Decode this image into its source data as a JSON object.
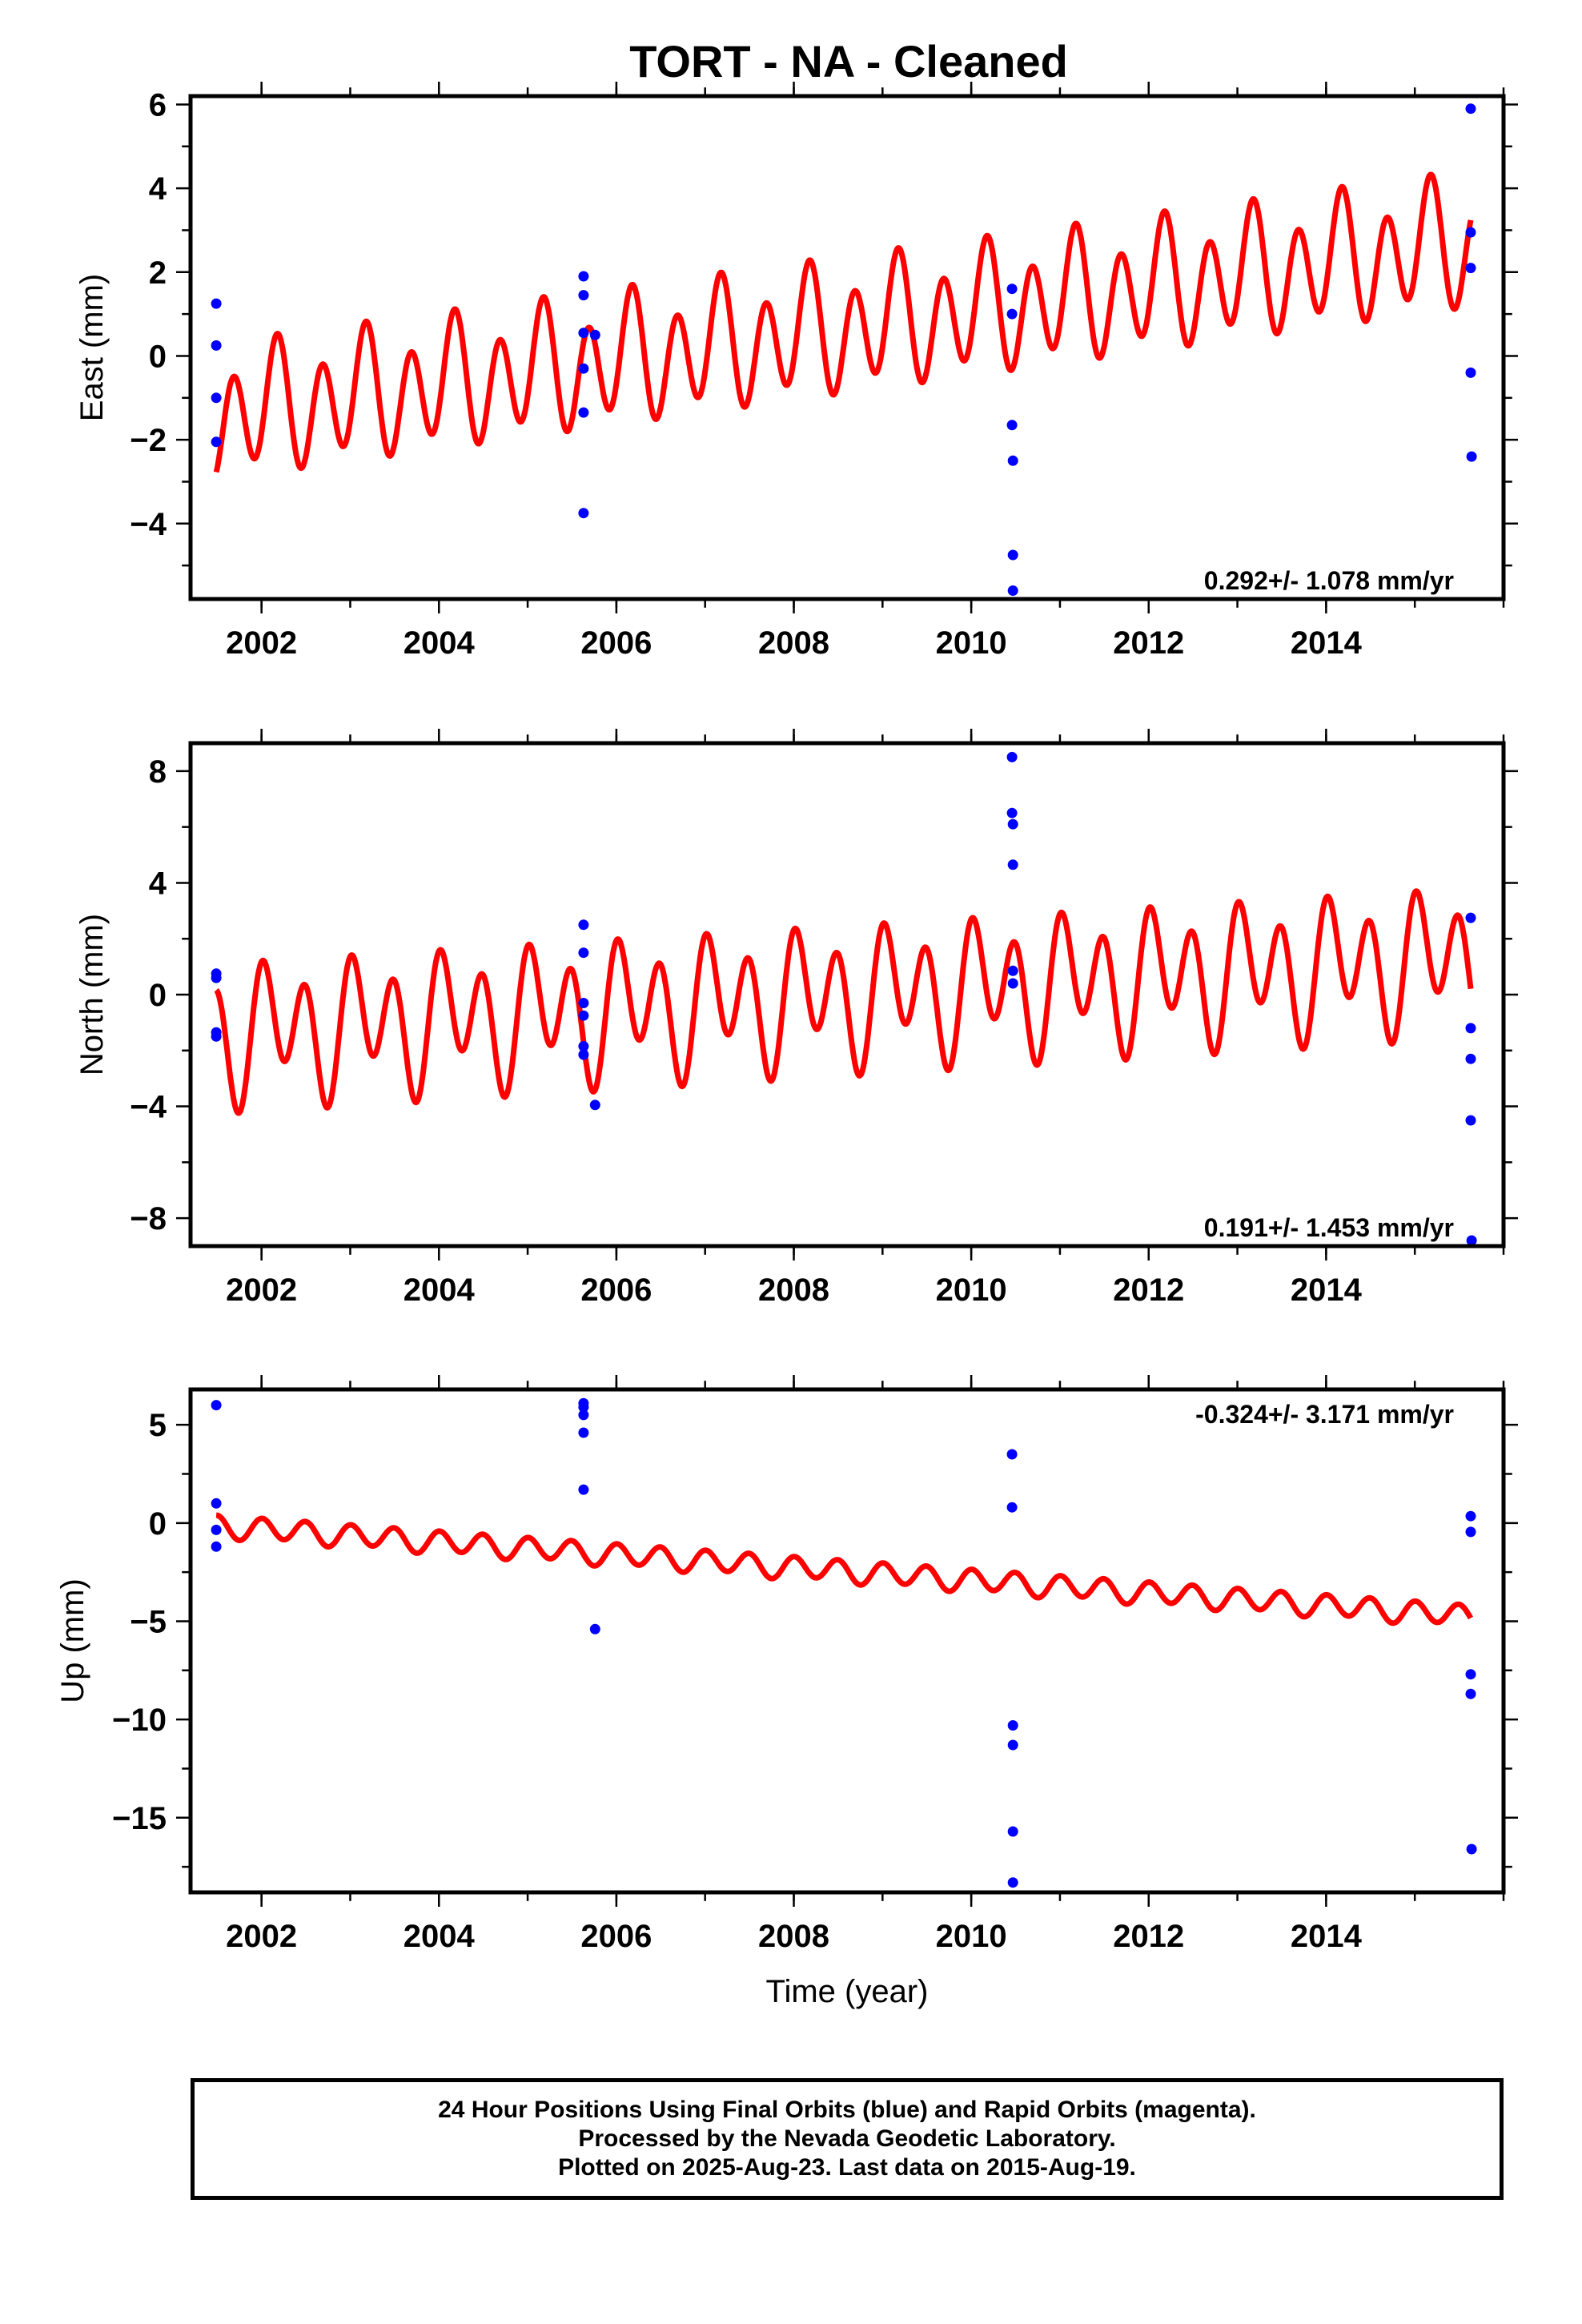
{
  "title": "TORT  - NA - Cleaned",
  "footer": {
    "line1": "24 Hour Positions Using Final Orbits (blue) and Rapid Orbits (magenta).",
    "line2": "Processed by the Nevada Geodetic Laboratory.",
    "line3": "Plotted on 2025-Aug-23. Last data on 2015-Aug-19."
  },
  "colors": {
    "model": "#ff0000",
    "final_orbits": "#0000ff",
    "frame": "#000000"
  },
  "chart_data": [
    {
      "type": "scatter",
      "panel": "east",
      "ylabel": "East (mm)",
      "xlabel": "",
      "xlim": [
        2001.2,
        2016.0
      ],
      "ylim": [
        -5.8,
        6.2
      ],
      "xticks": [
        2002,
        2004,
        2006,
        2008,
        2010,
        2012,
        2014
      ],
      "yticks": [
        -4,
        -2,
        0,
        2,
        4,
        6
      ],
      "rate_label": "0.292+/- 1.078 mm/yr",
      "rate_label_position": "bottom-right",
      "points": {
        "x": [
          2001.49,
          2001.49,
          2001.49,
          2001.49,
          2005.63,
          2005.63,
          2005.63,
          2005.63,
          2005.63,
          2005.63,
          2005.76,
          2010.46,
          2010.46,
          2010.46,
          2010.47,
          2010.47,
          2010.47,
          2015.63,
          2015.63,
          2015.63,
          2015.63,
          2015.64
        ],
        "y": [
          1.25,
          0.25,
          -1.0,
          -2.05,
          1.9,
          1.45,
          0.55,
          -0.3,
          -1.35,
          -3.75,
          0.5,
          1.6,
          1.0,
          -1.65,
          -2.5,
          -4.75,
          -5.6,
          5.9,
          2.95,
          2.1,
          -0.4,
          -2.4
        ]
      },
      "model": {
        "t0": 2001.49,
        "t1": 2015.63,
        "offset": -1.43,
        "rate": 0.292,
        "annual_amp": 0.48,
        "annual_phase": 0.82,
        "semiannual_amp": 1.32,
        "semiannual_phase": -0.75
      }
    },
    {
      "type": "scatter",
      "panel": "north",
      "ylabel": "North (mm)",
      "xlabel": "",
      "xlim": [
        2001.2,
        2016.0
      ],
      "ylim": [
        -9.0,
        9.0
      ],
      "xticks": [
        2002,
        2004,
        2006,
        2008,
        2010,
        2012,
        2014
      ],
      "yticks": [
        -8,
        -4,
        0,
        4,
        8
      ],
      "rate_label": "0.191+/- 1.453 mm/yr",
      "rate_label_position": "bottom-right",
      "points": {
        "x": [
          2001.49,
          2001.49,
          2001.49,
          2001.49,
          2005.63,
          2005.63,
          2005.63,
          2005.63,
          2005.63,
          2005.63,
          2005.76,
          2010.46,
          2010.46,
          2010.47,
          2010.47,
          2010.47,
          2010.47,
          2015.63,
          2015.63,
          2015.63,
          2015.63,
          2015.64
        ],
        "y": [
          0.75,
          0.6,
          -1.35,
          -1.5,
          2.5,
          1.5,
          -0.3,
          -0.75,
          -1.85,
          -2.15,
          -3.95,
          8.5,
          6.5,
          6.1,
          4.65,
          0.85,
          0.4,
          2.75,
          -1.2,
          -2.3,
          -4.5,
          -8.8
        ]
      },
      "model": {
        "t0": 2001.49,
        "t1": 2015.63,
        "offset": -1.4,
        "rate": 0.191,
        "annual_amp": 1.0,
        "annual_phase": 0.5,
        "semiannual_amp": 2.0,
        "semiannual_phase": 1.57
      }
    },
    {
      "type": "scatter",
      "panel": "up",
      "ylabel": "Up (mm)",
      "xlabel": "Time (year)",
      "xlim": [
        2001.2,
        2016.0
      ],
      "ylim": [
        -18.8,
        6.8
      ],
      "xticks": [
        2002,
        2004,
        2006,
        2008,
        2010,
        2012,
        2014
      ],
      "yticks": [
        -15,
        -10,
        -5,
        0,
        5
      ],
      "rate_label": "-0.324+/- 3.171 mm/yr",
      "rate_label_position": "top-right",
      "points": {
        "x": [
          2001.49,
          2001.49,
          2001.49,
          2001.49,
          2005.63,
          2005.63,
          2005.63,
          2005.63,
          2005.63,
          2005.76,
          2010.46,
          2010.46,
          2010.47,
          2010.47,
          2010.47,
          2010.47,
          2015.63,
          2015.63,
          2015.63,
          2015.63,
          2015.64
        ],
        "y": [
          6.0,
          1.0,
          -0.35,
          -1.2,
          6.1,
          5.5,
          4.6,
          1.7,
          5.9,
          -5.4,
          3.5,
          0.8,
          -10.3,
          -11.3,
          -15.7,
          -18.3,
          0.35,
          -0.45,
          -7.7,
          -8.7,
          -16.6
        ]
      },
      "model": {
        "t0": 2001.49,
        "t1": 2015.63,
        "offset": -0.15,
        "rate": -0.324,
        "annual_amp": 0.1,
        "annual_phase": 0.0,
        "semiannual_amp": 0.55,
        "semiannual_phase": 1.57
      }
    }
  ]
}
